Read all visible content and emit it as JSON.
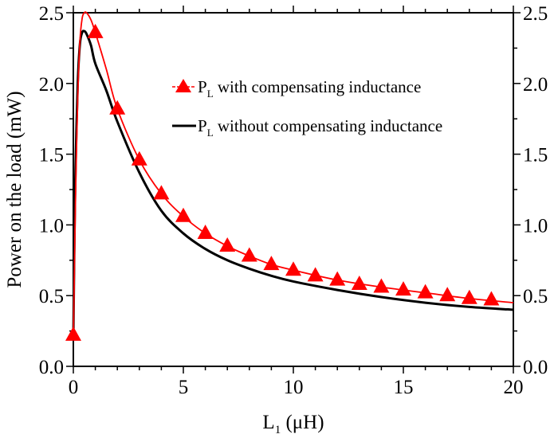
{
  "chart_data": {
    "type": "line",
    "xlabel": "L",
    "xlabel_sub": "1",
    "xlabel_unit": " (μH)",
    "ylabel": "Power on the load (mW)",
    "xlim": [
      0,
      20
    ],
    "ylim": [
      0,
      2.5
    ],
    "xticks": [
      0,
      5,
      10,
      15,
      20
    ],
    "xtick_labels": [
      "0",
      "5",
      "10",
      "15",
      "20"
    ],
    "yticks": [
      0,
      0.5,
      1.0,
      1.5,
      2.0,
      2.5
    ],
    "ytick_labels": [
      "0.0",
      "0.5",
      "1.0",
      "1.5",
      "2.0",
      "2.5"
    ],
    "right_axis_mirrored": true,
    "grid": false,
    "legend_placement": "top-right",
    "series": [
      {
        "name": "P",
        "name_sub": "L",
        "name_rest": " with compensating inductance",
        "color": "#ff0000",
        "marker": "triangle",
        "curve_x": [
          0,
          0.05,
          0.1,
          0.2,
          0.3,
          0.4,
          0.5,
          0.6,
          0.8,
          1,
          1.5,
          2,
          3,
          4,
          5,
          6,
          7,
          8,
          9,
          10,
          12,
          14,
          16,
          18,
          20
        ],
        "curve_y": [
          0.2,
          0.7,
          1.2,
          1.9,
          2.3,
          2.46,
          2.5,
          2.5,
          2.45,
          2.36,
          2.1,
          1.82,
          1.46,
          1.22,
          1.06,
          0.94,
          0.85,
          0.78,
          0.72,
          0.68,
          0.61,
          0.56,
          0.52,
          0.48,
          0.45
        ],
        "marker_x": [
          0,
          1,
          2,
          3,
          4,
          5,
          6,
          7,
          8,
          9,
          10,
          11,
          12,
          13,
          14,
          15,
          16,
          17,
          18,
          19
        ],
        "marker_y": [
          0.22,
          2.36,
          1.82,
          1.46,
          1.22,
          1.06,
          0.94,
          0.85,
          0.78,
          0.72,
          0.68,
          0.64,
          0.61,
          0.58,
          0.56,
          0.54,
          0.52,
          0.5,
          0.48,
          0.47
        ]
      },
      {
        "name": "P",
        "name_sub": "L",
        "name_rest": " without compensating inductance",
        "color": "#000000",
        "marker": "none",
        "curve_x": [
          0,
          0.05,
          0.1,
          0.2,
          0.3,
          0.4,
          0.5,
          0.6,
          0.8,
          1,
          1.5,
          2,
          3,
          4,
          5,
          6,
          7,
          8,
          9,
          10,
          12,
          14,
          16,
          18,
          20
        ],
        "curve_y": [
          0.2,
          0.9,
          1.4,
          2.0,
          2.28,
          2.36,
          2.37,
          2.35,
          2.27,
          2.14,
          1.95,
          1.73,
          1.37,
          1.1,
          0.94,
          0.83,
          0.75,
          0.69,
          0.64,
          0.6,
          0.54,
          0.49,
          0.45,
          0.42,
          0.4
        ]
      }
    ]
  }
}
